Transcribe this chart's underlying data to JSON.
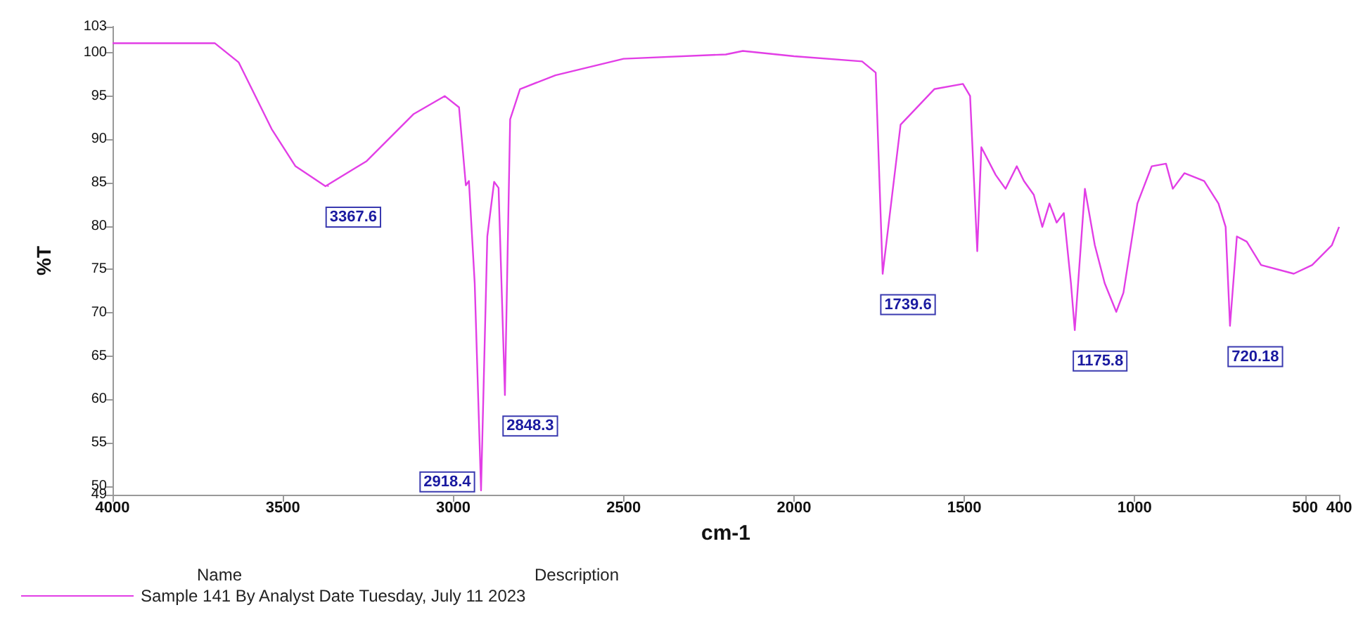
{
  "chart_data": {
    "type": "line",
    "xlabel": "cm-1",
    "ylabel": "%T",
    "x": [
      4000,
      3700,
      3630,
      3533,
      3463,
      3375,
      3254,
      3117,
      3025,
      2983,
      2963,
      2954,
      2937,
      2918.4,
      2900,
      2880,
      2867,
      2848.3,
      2833,
      2804,
      2700,
      2500,
      2200,
      2150,
      2000,
      1800,
      1760,
      1739.6,
      1687,
      1658,
      1588,
      1504,
      1483,
      1462,
      1450,
      1408,
      1379,
      1346,
      1325,
      1296,
      1271,
      1250,
      1229,
      1208,
      1187,
      1175.8,
      1146,
      1117,
      1088,
      1054,
      1033,
      992,
      950,
      908,
      888,
      854,
      796,
      754,
      733,
      720.18,
      700,
      671,
      629,
      533,
      479,
      421,
      400
    ],
    "series": [
      {
        "name": "Sample 141 By Analyst Date Tuesday, July 11 2023",
        "color": "#e23ee6",
        "values": [
          101.1,
          101.1,
          98.9,
          91.2,
          86.9,
          84.6,
          87.5,
          92.9,
          95.0,
          93.7,
          84.7,
          85.2,
          73.4,
          49.5,
          78.8,
          85.1,
          84.4,
          60.5,
          92.3,
          95.8,
          97.4,
          99.3,
          99.8,
          100.2,
          99.6,
          99.0,
          97.7,
          74.5,
          91.7,
          92.9,
          95.8,
          96.4,
          95.0,
          77.1,
          89.1,
          85.9,
          84.3,
          86.9,
          85.2,
          83.6,
          79.9,
          82.6,
          80.4,
          81.5,
          73.4,
          68.0,
          84.3,
          77.8,
          73.4,
          70.1,
          72.3,
          82.6,
          86.9,
          87.2,
          84.3,
          86.1,
          85.2,
          82.6,
          79.9,
          68.5,
          78.8,
          78.2,
          75.5,
          74.5,
          75.5,
          77.8,
          79.9
        ]
      }
    ],
    "xlim": [
      4000,
      400
    ],
    "xticks": [
      4000,
      3500,
      3000,
      2500,
      2000,
      1500,
      1000,
      500,
      400
    ],
    "ylim": [
      49,
      103
    ],
    "yticks": [
      49,
      50,
      55,
      60,
      65,
      70,
      75,
      80,
      85,
      90,
      95,
      100,
      103
    ],
    "annotations": [
      {
        "text": "3367.6",
        "x": 3367.6,
        "y": 84.6
      },
      {
        "text": "2918.4",
        "x": 2918.4,
        "y": 49.5
      },
      {
        "text": "2848.3",
        "x": 2848.3,
        "y": 60.5
      },
      {
        "text": "1739.6",
        "x": 1739.6,
        "y": 74.5
      },
      {
        "text": "1175.8",
        "x": 1175.8,
        "y": 68.0
      },
      {
        "text": "720.18",
        "x": 720.18,
        "y": 68.5
      },
      "Name",
      "Description"
    ],
    "grid": false,
    "legend": "bottom left",
    "marker": "none",
    "line_style": "solid"
  }
}
